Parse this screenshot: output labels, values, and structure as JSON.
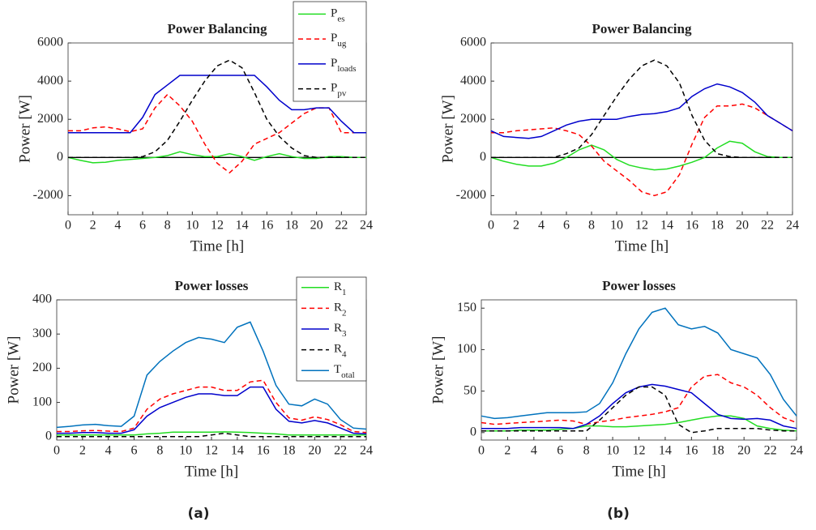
{
  "chart_data": [
    {
      "type": "line",
      "title": "Power Balancing",
      "xlabel": "Time [h]",
      "ylabel": "Power [W]",
      "x": [
        0,
        1,
        2,
        3,
        4,
        5,
        6,
        7,
        8,
        9,
        10,
        11,
        12,
        13,
        14,
        15,
        16,
        17,
        18,
        19,
        20,
        21,
        22,
        23,
        24
      ],
      "xlim": [
        0,
        24
      ],
      "xticks": [
        0,
        2,
        4,
        6,
        8,
        10,
        12,
        14,
        16,
        18,
        20,
        22,
        24
      ],
      "ylim": [
        -3000,
        6000
      ],
      "yticks": [
        -2000,
        0,
        2000,
        4000,
        6000
      ],
      "zero_line": true,
      "legend": "upper right",
      "series": [
        {
          "name": "Pes",
          "color": "#22dd22",
          "style": "solid",
          "values": [
            0,
            -150,
            -280,
            -250,
            -150,
            -100,
            -50,
            0,
            100,
            300,
            150,
            50,
            50,
            200,
            50,
            -150,
            50,
            200,
            50,
            -50,
            -50,
            50,
            50,
            0,
            0
          ]
        },
        {
          "name": "Pug",
          "color": "#ff0000",
          "style": "dashed",
          "values": [
            1400,
            1400,
            1550,
            1600,
            1500,
            1350,
            1500,
            2600,
            3300,
            2700,
            1900,
            700,
            -300,
            -800,
            -200,
            700,
            1000,
            1300,
            1800,
            2300,
            2600,
            2600,
            1300,
            1300,
            1300
          ]
        },
        {
          "name": "Ploads",
          "color": "#0000cc",
          "style": "solid",
          "values": [
            1300,
            1300,
            1300,
            1300,
            1300,
            1300,
            2100,
            3300,
            3800,
            4300,
            4300,
            4300,
            4300,
            4300,
            4300,
            4300,
            3700,
            3000,
            2500,
            2500,
            2600,
            2600,
            1900,
            1300,
            1300
          ]
        },
        {
          "name": "Ppv",
          "color": "#000000",
          "style": "dashed",
          "values": [
            0,
            0,
            0,
            0,
            0,
            0,
            50,
            300,
            900,
            1900,
            3000,
            4000,
            4800,
            5100,
            4700,
            3400,
            2000,
            1100,
            500,
            100,
            0,
            0,
            0,
            0,
            0
          ]
        }
      ]
    },
    {
      "type": "line",
      "title": "Power Balancing",
      "xlabel": "Time [h]",
      "ylabel": "Power [W]",
      "x": [
        0,
        1,
        2,
        3,
        4,
        5,
        6,
        7,
        8,
        9,
        10,
        11,
        12,
        13,
        14,
        15,
        16,
        17,
        18,
        19,
        20,
        21,
        22,
        23,
        24
      ],
      "xlim": [
        0,
        24
      ],
      "xticks": [
        0,
        2,
        4,
        6,
        8,
        10,
        12,
        14,
        16,
        18,
        20,
        22,
        24
      ],
      "ylim": [
        -3000,
        6000
      ],
      "yticks": [
        -2000,
        0,
        2000,
        4000,
        6000
      ],
      "zero_line": true,
      "series": [
        {
          "name": "Pes",
          "color": "#22dd22",
          "style": "solid",
          "values": [
            0,
            -200,
            -350,
            -450,
            -450,
            -300,
            0,
            400,
            650,
            400,
            -100,
            -400,
            -550,
            -650,
            -600,
            -450,
            -250,
            0,
            500,
            850,
            750,
            300,
            50,
            0,
            0
          ]
        },
        {
          "name": "Pug",
          "color": "#ff0000",
          "style": "dashed",
          "values": [
            1300,
            1300,
            1400,
            1450,
            1500,
            1550,
            1400,
            1200,
            600,
            -200,
            -700,
            -1200,
            -1800,
            -2000,
            -1800,
            -900,
            700,
            2100,
            2700,
            2700,
            2800,
            2600,
            2200,
            1800,
            1400
          ]
        },
        {
          "name": "Ploads",
          "color": "#0000cc",
          "style": "solid",
          "values": [
            1400,
            1100,
            1050,
            1000,
            1100,
            1400,
            1700,
            1900,
            2000,
            2000,
            2000,
            2150,
            2250,
            2300,
            2400,
            2600,
            3200,
            3600,
            3850,
            3700,
            3400,
            2900,
            2200,
            1800,
            1400
          ]
        },
        {
          "name": "Ppv",
          "color": "#000000",
          "style": "dashed",
          "values": [
            0,
            0,
            0,
            0,
            0,
            0,
            200,
            500,
            1200,
            2200,
            3200,
            4100,
            4800,
            5100,
            4800,
            3900,
            2200,
            900,
            200,
            50,
            0,
            0,
            0,
            0,
            0
          ]
        }
      ]
    },
    {
      "type": "line",
      "title": "Power losses",
      "xlabel": "Time [h]",
      "ylabel": "Power [W]",
      "x": [
        0,
        1,
        2,
        3,
        4,
        5,
        6,
        7,
        8,
        9,
        10,
        11,
        12,
        13,
        14,
        15,
        16,
        17,
        18,
        19,
        20,
        21,
        22,
        23,
        24
      ],
      "xlim": [
        0,
        24
      ],
      "xticks": [
        0,
        2,
        4,
        6,
        8,
        10,
        12,
        14,
        16,
        18,
        20,
        22,
        24
      ],
      "ylim": [
        -10,
        400
      ],
      "yticks": [
        0,
        100,
        200,
        300,
        400
      ],
      "legend": "upper right",
      "series": [
        {
          "name": "R1",
          "color": "#22dd22",
          "style": "solid",
          "values": [
            5,
            5,
            5,
            5,
            5,
            5,
            5,
            8,
            10,
            13,
            13,
            13,
            13,
            14,
            13,
            12,
            10,
            8,
            5,
            5,
            5,
            5,
            5,
            5,
            5
          ]
        },
        {
          "name": "R2",
          "color": "#ff0000",
          "style": "dashed",
          "values": [
            15,
            15,
            17,
            18,
            16,
            15,
            25,
            80,
            110,
            125,
            135,
            145,
            145,
            135,
            135,
            160,
            165,
            100,
            55,
            48,
            58,
            50,
            35,
            15,
            12
          ]
        },
        {
          "name": "R3",
          "color": "#0000cc",
          "style": "solid",
          "values": [
            10,
            10,
            12,
            12,
            10,
            10,
            20,
            60,
            85,
            100,
            115,
            125,
            125,
            120,
            120,
            145,
            145,
            80,
            45,
            40,
            47,
            40,
            25,
            10,
            8
          ]
        },
        {
          "name": "R4",
          "color": "#000000",
          "style": "dashed",
          "values": [
            0,
            0,
            0,
            0,
            0,
            0,
            0,
            0,
            0,
            0,
            0,
            0,
            5,
            10,
            5,
            0,
            0,
            0,
            0,
            0,
            0,
            0,
            0,
            0,
            0
          ]
        },
        {
          "name": "Total",
          "color": "#0072bd",
          "style": "solid",
          "values": [
            27,
            30,
            34,
            36,
            32,
            30,
            60,
            180,
            220,
            250,
            275,
            290,
            285,
            275,
            320,
            335,
            250,
            150,
            95,
            90,
            110,
            95,
            50,
            25,
            22
          ]
        }
      ]
    },
    {
      "type": "line",
      "title": "Power losses",
      "xlabel": "Time [h]",
      "ylabel": "Power [W]",
      "x": [
        0,
        1,
        2,
        3,
        4,
        5,
        6,
        7,
        8,
        9,
        10,
        11,
        12,
        13,
        14,
        15,
        16,
        17,
        18,
        19,
        20,
        21,
        22,
        23,
        24
      ],
      "xlim": [
        0,
        24
      ],
      "xticks": [
        0,
        2,
        4,
        6,
        8,
        10,
        12,
        14,
        16,
        18,
        20,
        22,
        24
      ],
      "ylim": [
        -9,
        160
      ],
      "yticks": [
        0,
        50,
        100,
        150
      ],
      "series": [
        {
          "name": "R1",
          "color": "#22dd22",
          "style": "solid",
          "values": [
            2,
            2,
            2,
            3,
            3,
            3,
            4,
            5,
            8,
            8,
            7,
            7,
            8,
            9,
            10,
            12,
            15,
            18,
            20,
            20,
            17,
            8,
            5,
            3,
            2
          ]
        },
        {
          "name": "R2",
          "color": "#ff0000",
          "style": "dashed",
          "values": [
            12,
            10,
            11,
            12,
            13,
            14,
            15,
            14,
            10,
            13,
            15,
            18,
            20,
            22,
            25,
            30,
            55,
            68,
            70,
            60,
            55,
            45,
            30,
            18,
            12
          ]
        },
        {
          "name": "R3",
          "color": "#0000cc",
          "style": "solid",
          "values": [
            5,
            5,
            5,
            6,
            6,
            6,
            6,
            5,
            10,
            20,
            35,
            48,
            55,
            58,
            56,
            52,
            48,
            35,
            22,
            17,
            16,
            17,
            15,
            8,
            5
          ]
        },
        {
          "name": "R4",
          "color": "#000000",
          "style": "dashed",
          "values": [
            2,
            2,
            2,
            2,
            2,
            2,
            2,
            2,
            2,
            15,
            30,
            45,
            55,
            55,
            45,
            10,
            0,
            2,
            5,
            5,
            5,
            5,
            3,
            2,
            2
          ]
        },
        {
          "name": "Total",
          "color": "#0072bd",
          "style": "solid",
          "values": [
            20,
            17,
            18,
            20,
            22,
            24,
            24,
            24,
            25,
            35,
            60,
            95,
            125,
            145,
            150,
            130,
            125,
            128,
            120,
            100,
            95,
            90,
            70,
            40,
            20
          ]
        }
      ]
    }
  ],
  "captions": [
    "(a)",
    "(b)"
  ]
}
